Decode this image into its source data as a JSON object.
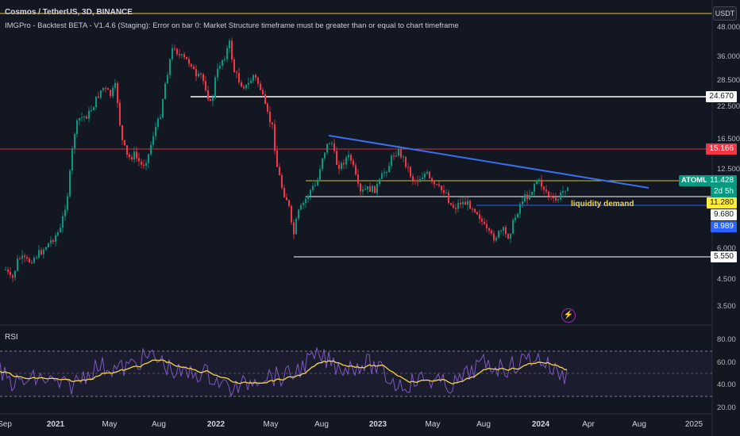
{
  "header": {
    "title": "Cosmos / TetherUS, 3D, BINANCE",
    "indicator": "IMGPro - Backtest BETA - V1.4.6 (Staging): Error on bar 0: Market Structure timeframe must be greater than or equal to chart timeframe"
  },
  "currency_button": "USDT",
  "price_axis_labels": [
    "48.000",
    "36.000",
    "28.500",
    "22.500",
    "16.500",
    "12.500",
    "6.000",
    "4.500",
    "3.500"
  ],
  "price_tags": [
    {
      "text": "24.670",
      "bg": "#ffffff",
      "fg": "#131722"
    },
    {
      "text": "15.166",
      "bg": "#f23645",
      "fg": "#ffffff"
    },
    {
      "text": "11.428",
      "bg": "#089981",
      "fg": "#ffffff"
    },
    {
      "text": "2d 5h",
      "bg": "#089981",
      "fg": "#ffffff"
    },
    {
      "text": "11.280",
      "bg": "#ffeb3b",
      "fg": "#131722"
    },
    {
      "text": "9.680",
      "bg": "#ffffff",
      "fg": "#131722"
    },
    {
      "text": "8.989",
      "bg": "#2962ff",
      "fg": "#ffffff"
    },
    {
      "text": "5.550",
      "bg": "#ffffff",
      "fg": "#131722"
    }
  ],
  "symbol_tag": "ATOMUSDT",
  "annotation": "liquidity demand",
  "rsi": {
    "label": "RSI",
    "axis_labels": [
      "80.00",
      "60.00",
      "40.00",
      "20.00"
    ]
  },
  "time_axis": [
    "Sep",
    "2021",
    "May",
    "Aug",
    "2022",
    "May",
    "Aug",
    "2023",
    "May",
    "Aug",
    "2024",
    "Apr",
    "Aug",
    "2025"
  ],
  "colors": {
    "up": "#089981",
    "down": "#f23645",
    "rsi_line": "#7e57c2",
    "rsi_ma": "#f5d547",
    "trendline": "#3b6ff0"
  }
}
